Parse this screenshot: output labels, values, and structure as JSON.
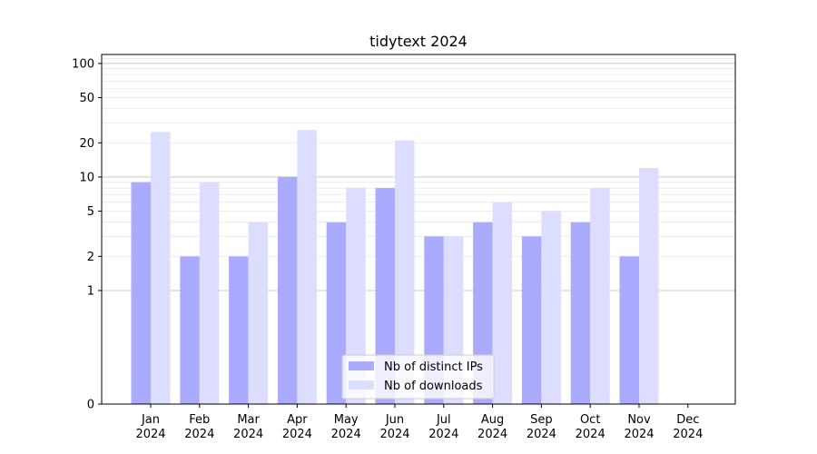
{
  "chart_data": {
    "type": "bar",
    "title": "tidytext 2024",
    "xlabel": "",
    "ylabel": "",
    "y_scale": "symlog",
    "ylim": [
      0,
      120
    ],
    "y_ticks": [
      0,
      1,
      2,
      5,
      10,
      20,
      50,
      100
    ],
    "grid": true,
    "legend_position": "bottom-center",
    "categories": [
      [
        "Jan",
        "2024"
      ],
      [
        "Feb",
        "2024"
      ],
      [
        "Mar",
        "2024"
      ],
      [
        "Apr",
        "2024"
      ],
      [
        "May",
        "2024"
      ],
      [
        "Jun",
        "2024"
      ],
      [
        "Jul",
        "2024"
      ],
      [
        "Aug",
        "2024"
      ],
      [
        "Sep",
        "2024"
      ],
      [
        "Oct",
        "2024"
      ],
      [
        "Nov",
        "2024"
      ],
      [
        "Dec",
        "2024"
      ]
    ],
    "series": [
      {
        "name": "Nb of distinct IPs",
        "color": "#aaaaff",
        "values": [
          9,
          2,
          2,
          10,
          4,
          8,
          3,
          4,
          3,
          4,
          2,
          0
        ]
      },
      {
        "name": "Nb of downloads",
        "color": "#ddddff",
        "values": [
          25,
          9,
          4,
          26,
          8,
          21,
          3,
          6,
          5,
          8,
          12,
          0
        ]
      }
    ]
  }
}
